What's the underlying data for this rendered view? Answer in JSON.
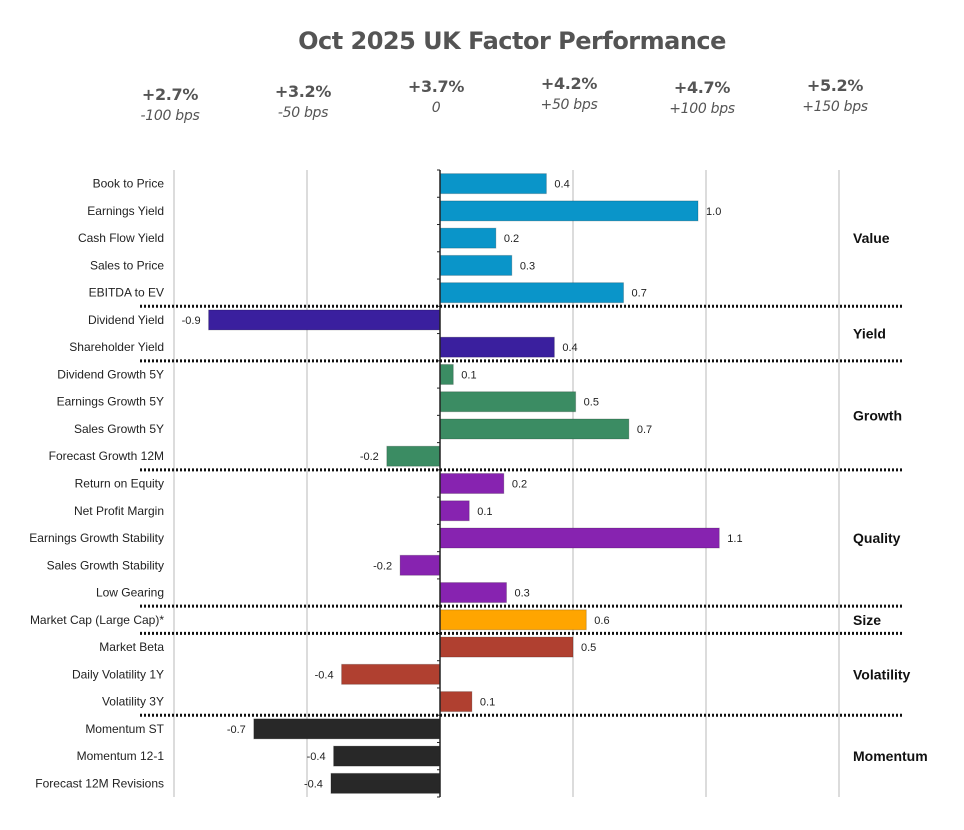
{
  "chart_data": {
    "type": "bar",
    "orientation": "horizontal",
    "title": "Oct 2025 UK Factor Performance",
    "xlabel": "",
    "ylabel": "",
    "xlim": [
      -1.0,
      1.5
    ],
    "x_gridlines": [
      -1.0,
      -0.5,
      0.5,
      1.0,
      1.5
    ],
    "grid": true,
    "scenario_header": [
      {
        "value": -1.0,
        "return": "+2.7%",
        "bps": "-100 bps"
      },
      {
        "value": -0.5,
        "return": "+3.2%",
        "bps": "-50 bps"
      },
      {
        "value": 0.0,
        "return": "+3.7%",
        "bps": "0"
      },
      {
        "value": 0.5,
        "return": "+4.2%",
        "bps": "+50 bps"
      },
      {
        "value": 1.0,
        "return": "+4.7%",
        "bps": "+100 bps"
      },
      {
        "value": 1.5,
        "return": "+5.2%",
        "bps": "+150 bps"
      }
    ],
    "groups": [
      {
        "name": "Value",
        "color": "#0a95c9",
        "factors": [
          {
            "name": "Book to Price",
            "value": 0.4,
            "label": "0.4"
          },
          {
            "name": "Earnings Yield",
            "value": 0.97,
            "label": "1.0"
          },
          {
            "name": "Cash Flow Yield",
            "value": 0.21,
            "label": "0.2"
          },
          {
            "name": "Sales to Price",
            "value": 0.27,
            "label": "0.3"
          },
          {
            "name": "EBITDA to EV",
            "value": 0.69,
            "label": "0.7"
          }
        ]
      },
      {
        "name": "Yield",
        "color": "#3a1f9e",
        "factors": [
          {
            "name": "Dividend Yield",
            "value": -0.87,
            "label": "-0.9"
          },
          {
            "name": "Shareholder Yield",
            "value": 0.43,
            "label": "0.4"
          }
        ]
      },
      {
        "name": "Growth",
        "color": "#3b8c63",
        "factors": [
          {
            "name": "Dividend Growth 5Y",
            "value": 0.05,
            "label": "0.1"
          },
          {
            "name": "Earnings Growth 5Y",
            "value": 0.51,
            "label": "0.5"
          },
          {
            "name": "Sales Growth 5Y",
            "value": 0.71,
            "label": "0.7"
          },
          {
            "name": "Forecast Growth 12M",
            "value": -0.2,
            "label": "-0.2"
          }
        ]
      },
      {
        "name": "Quality",
        "color": "#8723b0",
        "factors": [
          {
            "name": "Return on Equity",
            "value": 0.24,
            "label": "0.2"
          },
          {
            "name": "Net Profit Margin",
            "value": 0.11,
            "label": "0.1"
          },
          {
            "name": "Earnings Growth Stability",
            "value": 1.05,
            "label": "1.1"
          },
          {
            "name": "Sales Growth Stability",
            "value": -0.15,
            "label": "-0.2"
          },
          {
            "name": "Low Gearing",
            "value": 0.25,
            "label": "0.3"
          }
        ]
      },
      {
        "name": "Size",
        "color": "#ffa500",
        "factors": [
          {
            "name": "Market Cap (Large Cap)*",
            "value": 0.55,
            "label": "0.6"
          }
        ]
      },
      {
        "name": "Volatility",
        "color": "#b04030",
        "factors": [
          {
            "name": "Market Beta",
            "value": 0.5,
            "label": "0.5"
          },
          {
            "name": "Daily Volatility 1Y",
            "value": -0.37,
            "label": "-0.4"
          },
          {
            "name": "Volatility 3Y",
            "value": 0.12,
            "label": "0.1"
          }
        ]
      },
      {
        "name": "Momentum",
        "color": "#282828",
        "factors": [
          {
            "name": "Momentum ST",
            "value": -0.7,
            "label": "-0.7"
          },
          {
            "name": "Momentum 12-1",
            "value": -0.4,
            "label": "-0.4"
          },
          {
            "name": "Forecast 12M Revisions",
            "value": -0.41,
            "label": "-0.4"
          }
        ]
      }
    ]
  }
}
